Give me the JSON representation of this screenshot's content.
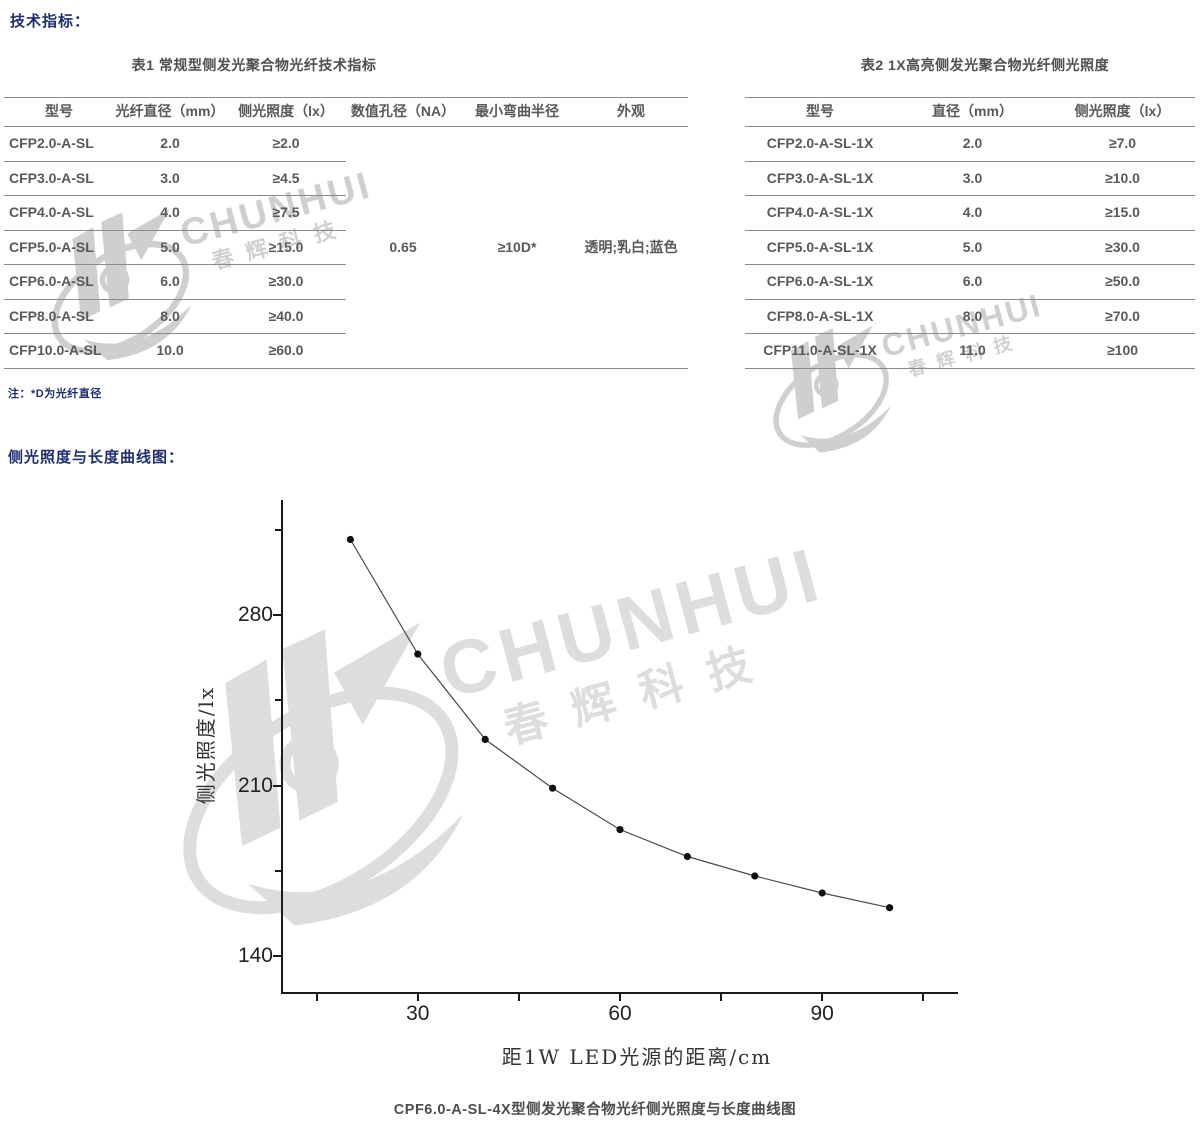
{
  "headings": {
    "specs": "技术指标：",
    "curve": "侧光照度与长度曲线图："
  },
  "note": "注：*D为光纤直径",
  "watermark": {
    "brand": "CHUNHUI",
    "brand_cn": "春辉科技"
  },
  "table1": {
    "title": "表1 常规型侧发光聚合物光纤技术指标",
    "headers": [
      "型号",
      "光纤直径（mm）",
      "侧光照度（lx）",
      "数值孔径（NA）",
      "最小弯曲半径",
      "外观"
    ],
    "rows": [
      [
        "CFP2.0-A-SL",
        "2.0",
        "≥2.0"
      ],
      [
        "CFP3.0-A-SL",
        "3.0",
        "≥4.5"
      ],
      [
        "CFP4.0-A-SL",
        "4.0",
        "≥7.5"
      ],
      [
        "CFP5.0-A-SL",
        "5.0",
        "≥15.0"
      ],
      [
        "CFP6.0-A-SL",
        "6.0",
        "≥30.0"
      ],
      [
        "CFP8.0-A-SL",
        "8.0",
        "≥40.0"
      ],
      [
        "CFP10.0-A-SL",
        "10.0",
        "≥60.0"
      ]
    ],
    "merged": {
      "numerical_aperture": "0.65",
      "min_bend_radius": "≥10D*",
      "appearance": "透明;乳白;蓝色"
    }
  },
  "table2": {
    "title": "表2 1X高亮侧发光聚合物光纤侧光照度",
    "headers": [
      "型号",
      "直径（mm）",
      "侧光照度（lx）"
    ],
    "rows": [
      [
        "CFP2.0-A-SL-1X",
        "2.0",
        "≥7.0"
      ],
      [
        "CFP3.0-A-SL-1X",
        "3.0",
        "≥10.0"
      ],
      [
        "CFP4.0-A-SL-1X",
        "4.0",
        "≥15.0"
      ],
      [
        "CFP5.0-A-SL-1X",
        "5.0",
        "≥30.0"
      ],
      [
        "CFP6.0-A-SL-1X",
        "6.0",
        "≥50.0"
      ],
      [
        "CFP8.0-A-SL-1X",
        "8.0",
        "≥70.0"
      ],
      [
        "CFP11.0-A-SL-1X",
        "11.0",
        "≥100"
      ]
    ]
  },
  "chart_data": {
    "type": "line",
    "x": [
      20,
      30,
      40,
      50,
      60,
      70,
      80,
      90,
      100
    ],
    "y": [
      311,
      264,
      229,
      209,
      192,
      181,
      173,
      166,
      160
    ],
    "series_name": "CPF6.0-A-SL-4X",
    "title": "",
    "xlabel": "距1W LED光源的距离/cm",
    "ylabel": "侧光照度/lx",
    "xticks": [
      30,
      60,
      90
    ],
    "yticks": [
      280,
      210,
      140
    ],
    "xticks_minor": [
      15,
      45,
      75,
      105
    ],
    "yticks_minor": [
      315,
      245,
      175
    ],
    "xlim": [
      10,
      110
    ],
    "ylim": [
      125,
      327.2
    ],
    "grid": false,
    "legend": "none",
    "marker": "filled-circle",
    "caption": "CPF6.0-A-SL-4X型侧发光聚合物光纤侧光照度与长度曲线图"
  },
  "colors": {
    "heading_navy": "#1d2f6f",
    "table_text": "#595959",
    "table_line": "#8a8a8a",
    "axis": "#1a1a1a",
    "watermark_table": "#b2b2b2",
    "watermark_chart": "#dcdcdc"
  }
}
